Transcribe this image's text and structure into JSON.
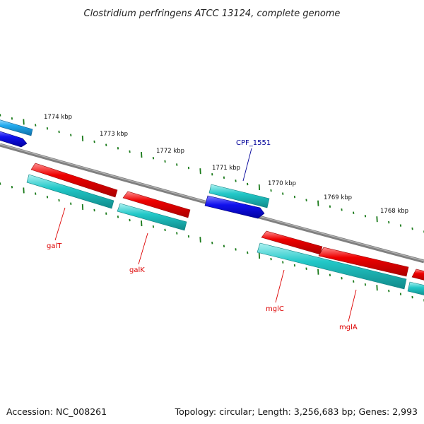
{
  "title": "Clostridium perfringens ATCC 13124, complete genome",
  "footer": {
    "accession": "Accession: NC_008261",
    "summary": "Topology: circular; Length: 3,256,683 bp; Genes: 2,993"
  },
  "colors": {
    "backbone": "#808080",
    "tick": "#1a7a1a",
    "label_red": "#dd0000",
    "label_blue": "#000099",
    "feature_red": "#ee0000",
    "feature_cyan": "#1fc4c4",
    "feature_blue": "#1010ee",
    "feature_lightblue": "#22aaee"
  },
  "scale": {
    "unit": "kbp",
    "labels": [
      "1774 kbp",
      "1773 kbp",
      "1772 kbp",
      "1771 kbp",
      "1770 kbp",
      "1769 kbp",
      "1768 kbp"
    ]
  },
  "genes": [
    {
      "name": "galT",
      "color": "red"
    },
    {
      "name": "galK",
      "color": "red"
    },
    {
      "name": "CPF_1551",
      "color": "blue"
    },
    {
      "name": "mglC",
      "color": "red"
    },
    {
      "name": "mglA",
      "color": "red"
    }
  ]
}
